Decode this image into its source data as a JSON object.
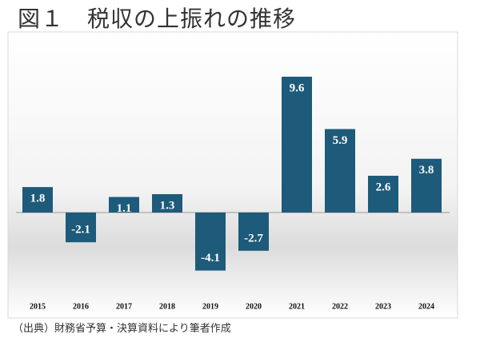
{
  "chart_data": {
    "type": "bar",
    "title": "図１　税収の上振れの推移",
    "source": "（出典）財務省予算・決算資料により筆者作成",
    "categories": [
      "2015",
      "2016",
      "2017",
      "2018",
      "2019",
      "2020",
      "2021",
      "2022",
      "2023",
      "2024"
    ],
    "values": [
      1.8,
      -2.1,
      1.1,
      1.3,
      -4.1,
      -2.7,
      9.6,
      5.9,
      2.6,
      3.8
    ],
    "color": "#1e5a7a"
  }
}
